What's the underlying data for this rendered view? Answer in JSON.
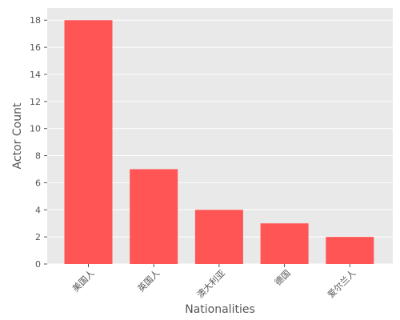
{
  "chart_data": {
    "type": "bar",
    "title": "",
    "xlabel": "Nationalities",
    "ylabel": "Actor Count",
    "categories": [
      "美国人",
      "英国人",
      "澳大利亚",
      "德国",
      "爱尔兰人"
    ],
    "values": [
      18,
      7,
      4,
      3,
      2
    ],
    "ylim": [
      0,
      18.9
    ],
    "yticks": [
      0,
      2,
      4,
      6,
      8,
      10,
      12,
      14,
      16,
      18
    ],
    "grid": true,
    "colors": {
      "bar": "#ff5555",
      "plot_background": "#e9e9e9",
      "grid": "#ffffff"
    }
  }
}
